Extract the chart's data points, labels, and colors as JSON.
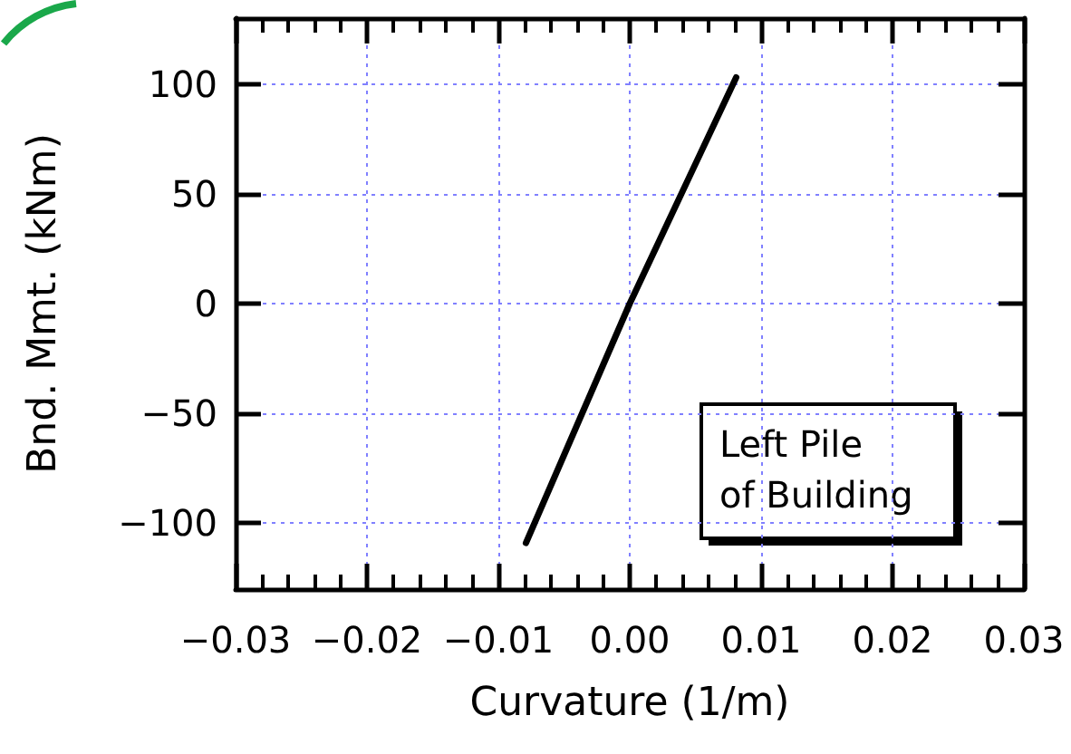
{
  "chart_data": {
    "type": "line",
    "xlabel": "Curvature (1/m)",
    "ylabel": "Bnd. Mmt. (kNm)",
    "x": [
      -0.0079,
      0,
      0.0081
    ],
    "series": [
      {
        "color": "#000000",
        "values": [
          -109,
          0,
          103
        ]
      }
    ],
    "xlim": [
      -0.03,
      0.03
    ],
    "ylim": [
      -130,
      130
    ],
    "xticks": [
      {
        "value": -0.03,
        "label": "−0.03"
      },
      {
        "value": -0.02,
        "label": "−0.02"
      },
      {
        "value": -0.01,
        "label": "−0.01"
      },
      {
        "value": 0,
        "label": "0.00"
      },
      {
        "value": 0.01,
        "label": "0.01"
      },
      {
        "value": 0.02,
        "label": "0.02"
      },
      {
        "value": 0.03,
        "label": "0.03"
      }
    ],
    "yticks": [
      {
        "value": -100,
        "label": "−100"
      },
      {
        "value": -50,
        "label": "−50"
      },
      0,
      50,
      100
    ],
    "annotations": [
      "Left Pile\nof Building"
    ],
    "grid": true,
    "marker": "none",
    "line_style": "solid"
  }
}
